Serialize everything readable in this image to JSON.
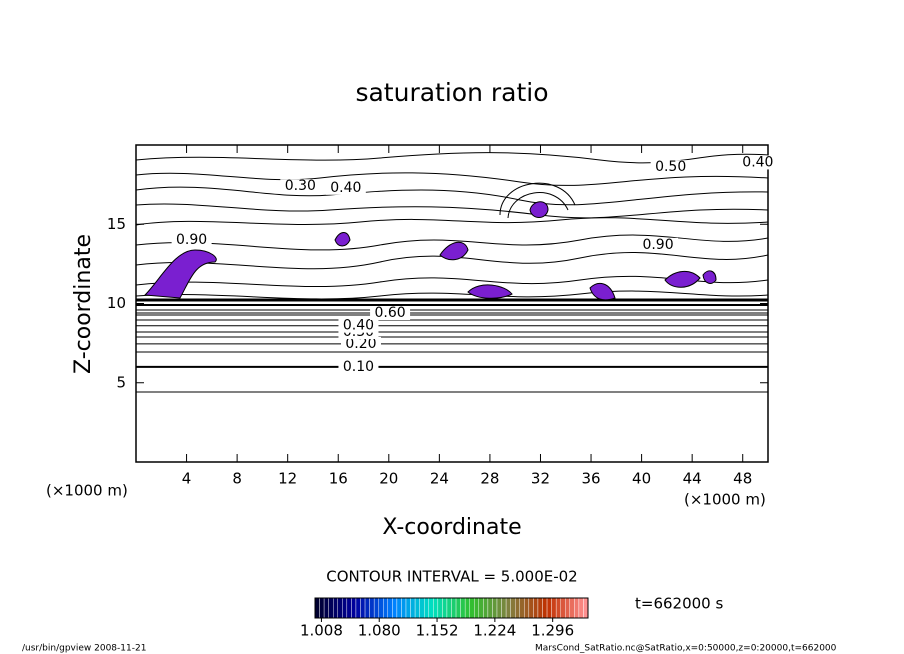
{
  "chart_data": {
    "type": "contour",
    "title": "saturation ratio",
    "xlabel": "X-coordinate",
    "ylabel": "Z-coordinate",
    "x_unit": "(×1000 m)",
    "y_unit": "(×1000 m)",
    "xlim": [
      0,
      50
    ],
    "ylim": [
      0,
      20
    ],
    "xticks": [
      4,
      8,
      12,
      16,
      20,
      24,
      28,
      32,
      36,
      40,
      44,
      48
    ],
    "yticks": [
      5,
      10,
      15
    ],
    "contours": [
      {
        "level": 0.1,
        "label": "0.10",
        "x": 17.6,
        "z": 6.0
      },
      {
        "level": 0.2,
        "label": "0.20",
        "x": 17.8,
        "z": 7.45
      },
      {
        "level": 0.3,
        "label": "0.30",
        "x": 17.6,
        "z": 8.2
      },
      {
        "level": 0.4,
        "label": "0.40",
        "x": 17.6,
        "z": 8.6
      },
      {
        "level": 0.6,
        "label": "0.60",
        "x": 20.1,
        "z": 9.4
      },
      {
        "level": 0.5,
        "label": "0.50",
        "x": 42.3,
        "z": 18.6
      },
      {
        "level": 0.4,
        "label": "0.40",
        "x": 49.2,
        "z": 18.9
      },
      {
        "level": 0.3,
        "label": "0.30",
        "x": 13.0,
        "z": 17.4
      },
      {
        "level": 0.4,
        "label": "0.40",
        "x": 16.6,
        "z": 17.3
      },
      {
        "level": 0.9,
        "label": "0.90",
        "x": 4.4,
        "z": 14.0
      },
      {
        "level": 0.9,
        "label": "0.90",
        "x": 41.3,
        "z": 13.7
      }
    ],
    "contour_interval": "CONTOUR INTERVAL = 5.000E-02",
    "colorbar": {
      "lim": [
        1.0,
        1.34
      ],
      "ticks": [
        {
          "value": 1.008,
          "label": "1.008"
        },
        {
          "value": 1.08,
          "label": "1.080"
        },
        {
          "value": 1.152,
          "label": "1.152"
        },
        {
          "value": 1.224,
          "label": "1.224"
        },
        {
          "value": 1.296,
          "label": "1.296"
        }
      ],
      "colors": [
        "#000030",
        "#0000a0",
        "#0080ff",
        "#00e0c0",
        "#30c030",
        "#808040",
        "#c03000",
        "#ff9090"
      ]
    },
    "time_label": "t=662000 s",
    "footer_left": "/usr/bin/gpview   2008-11-21",
    "footer_right": "MarsCond_SatRatio.nc@SatRatio,x=0:50000,z=0:20000,t=662000"
  }
}
